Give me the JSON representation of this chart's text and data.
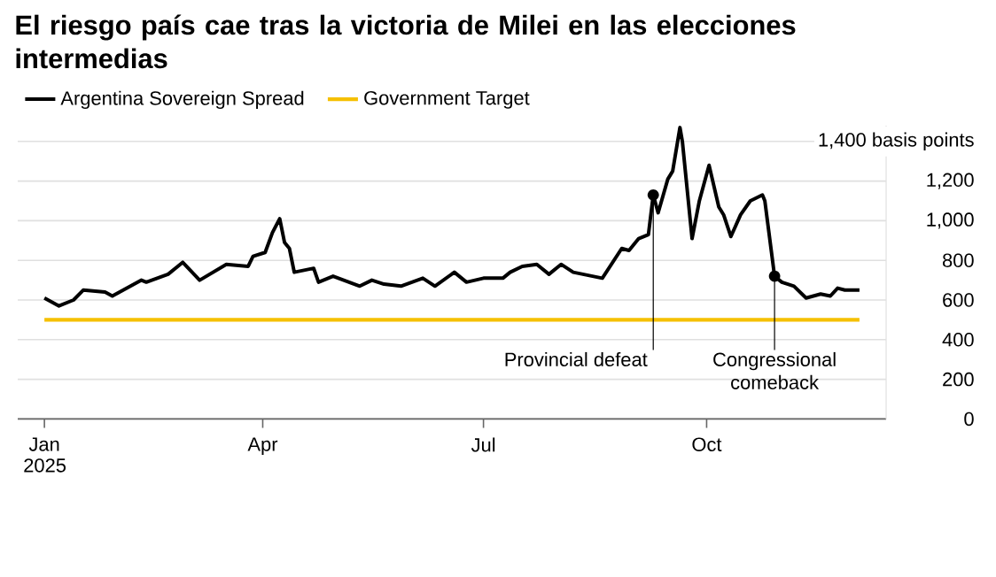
{
  "chart_data": {
    "type": "line",
    "title": "El riesgo país cae tras la victoria de Milei en las elecciones intermedias",
    "series": [
      {
        "name": "Argentina Sovereign Spread",
        "color": "#000000",
        "x": [
          "2025-01-01",
          "2025-01-07",
          "2025-01-13",
          "2025-01-17",
          "2025-01-26",
          "2025-01-29",
          "2025-02-10",
          "2025-02-12",
          "2025-02-21",
          "2025-02-27",
          "2025-03-06",
          "2025-03-17",
          "2025-03-26",
          "2025-03-28",
          "2025-04-02",
          "2025-04-05",
          "2025-04-08",
          "2025-04-10",
          "2025-04-12",
          "2025-04-14",
          "2025-04-22",
          "2025-04-24",
          "2025-04-30",
          "2025-05-11",
          "2025-05-16",
          "2025-05-21",
          "2025-05-28",
          "2025-06-06",
          "2025-06-11",
          "2025-06-19",
          "2025-06-24",
          "2025-07-01",
          "2025-07-09",
          "2025-07-12",
          "2025-07-17",
          "2025-07-23",
          "2025-07-28",
          "2025-08-02",
          "2025-08-07",
          "2025-08-19",
          "2025-08-27",
          "2025-08-30",
          "2025-09-03",
          "2025-09-07",
          "2025-09-09",
          "2025-09-11",
          "2025-09-15",
          "2025-09-17",
          "2025-09-20",
          "2025-09-21",
          "2025-09-25",
          "2025-09-28",
          "2025-10-02",
          "2025-10-06",
          "2025-10-08",
          "2025-10-11",
          "2025-10-15",
          "2025-10-19",
          "2025-10-24",
          "2025-10-25",
          "2025-10-29",
          "2025-11-01",
          "2025-11-06",
          "2025-11-11",
          "2025-11-17",
          "2025-11-21",
          "2025-11-24",
          "2025-11-27",
          "2025-12-03"
        ],
        "values": [
          610,
          570,
          600,
          650,
          640,
          620,
          700,
          690,
          730,
          790,
          700,
          780,
          770,
          820,
          840,
          940,
          1010,
          890,
          860,
          740,
          760,
          690,
          720,
          670,
          700,
          680,
          670,
          710,
          670,
          740,
          690,
          710,
          710,
          740,
          770,
          780,
          730,
          780,
          740,
          710,
          860,
          850,
          910,
          930,
          1130,
          1040,
          1210,
          1250,
          1470,
          1400,
          910,
          1100,
          1280,
          1070,
          1030,
          920,
          1030,
          1100,
          1130,
          1100,
          720,
          690,
          670,
          610,
          630,
          620,
          660,
          650,
          650
        ]
      },
      {
        "name": "Government Target",
        "color": "#f5c000",
        "x": [
          "2025-01-01",
          "2025-12-03"
        ],
        "values": [
          500,
          500
        ]
      }
    ],
    "xlim": [
      "2024-12-21",
      "2025-12-14"
    ],
    "xticks": [
      {
        "value": "2025-01-01",
        "label": "Jan 2025"
      },
      {
        "value": "2025-04-01",
        "label": "Apr"
      },
      {
        "value": "2025-07-01",
        "label": "Jul"
      },
      {
        "value": "2025-10-01",
        "label": "Oct"
      }
    ],
    "ylim": [
      0,
      1480
    ],
    "yticks": [
      0,
      200,
      400,
      600,
      800,
      {
        "value": 1000,
        "label": "1,000"
      },
      {
        "value": 1200,
        "label": "1,200"
      },
      {
        "value": 1400,
        "label": "1,400 basis points"
      }
    ],
    "annotations": [
      {
        "text": "Provincial defeat",
        "x": "2025-09-09",
        "y": 1130
      },
      {
        "text": "Congressional comeback",
        "x": "2025-10-29",
        "y": 720
      }
    ],
    "grid": "y",
    "legend": "top left",
    "marker": "none",
    "line_style": "solid"
  }
}
